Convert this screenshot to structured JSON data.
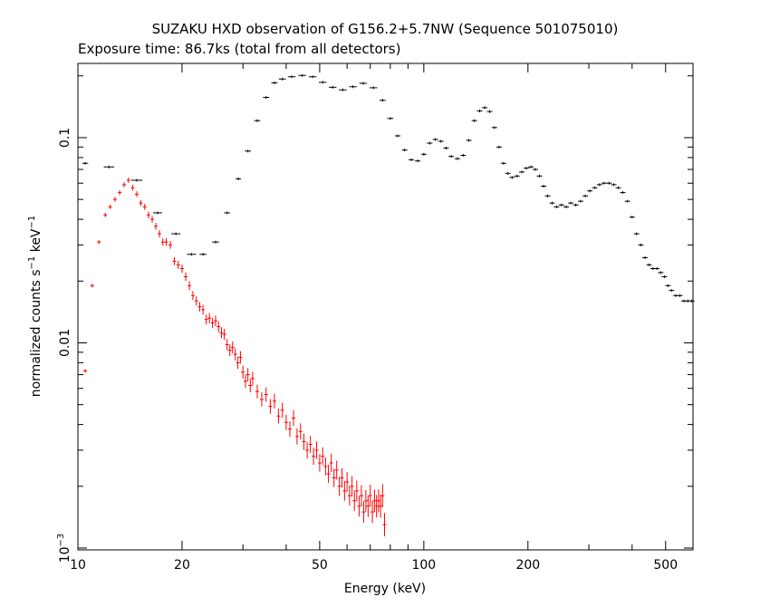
{
  "chart_data": {
    "type": "scatter",
    "title": "SUZAKU HXD observation of G156.2+5.7NW (Sequence 501075010)",
    "subtitle": "Exposure time: 86.7ks (total from all detectors)",
    "xlabel": "Energy (keV)",
    "ylabel": "normalized counts s^-1 keV^-1",
    "xscale": "log",
    "yscale": "log",
    "xlim": [
      10,
      600
    ],
    "ylim": [
      0.00098,
      0.23
    ],
    "grid": false,
    "x_ticks": [
      {
        "value": 10,
        "label": "10"
      },
      {
        "value": 20,
        "label": "20"
      },
      {
        "value": 50,
        "label": "50"
      },
      {
        "value": 100,
        "label": "100"
      },
      {
        "value": 200,
        "label": "200"
      },
      {
        "value": 500,
        "label": "500"
      }
    ],
    "y_ticks": [
      {
        "value": 0.001,
        "label": "10",
        "exp": "−3"
      },
      {
        "value": 0.01,
        "label": "0.01",
        "exp": ""
      },
      {
        "value": 0.1,
        "label": "0.1",
        "exp": ""
      }
    ],
    "series": [
      {
        "color": "#000000",
        "points": [
          [
            10.5,
            0.075,
            0.55
          ],
          [
            12.3,
            0.072,
            1.2
          ],
          [
            14.8,
            0.062,
            1.3
          ],
          [
            17.0,
            0.043,
            1.0
          ],
          [
            19.2,
            0.034,
            1.0
          ],
          [
            21.3,
            0.027,
            1.0
          ],
          [
            23.0,
            0.027,
            0.7
          ],
          [
            25.0,
            0.031,
            0.7
          ],
          [
            27.0,
            0.043,
            0.6
          ],
          [
            29.1,
            0.063,
            0.5
          ],
          [
            31.0,
            0.086,
            0.6
          ],
          [
            33.0,
            0.121,
            0.6
          ],
          [
            35.0,
            0.157,
            0.6
          ],
          [
            37.0,
            0.185,
            0.6
          ],
          [
            39.0,
            0.193,
            0.7
          ],
          [
            41.5,
            0.198,
            0.8
          ],
          [
            44.5,
            0.201,
            0.8
          ],
          [
            47.7,
            0.198,
            0.8
          ],
          [
            51.0,
            0.186,
            0.8
          ],
          [
            54.5,
            0.176,
            0.8
          ],
          [
            58.3,
            0.171,
            0.8
          ],
          [
            62.4,
            0.177,
            0.8
          ],
          [
            66.8,
            0.184,
            0.8
          ],
          [
            71.5,
            0.175,
            0.8
          ],
          [
            76.0,
            0.152,
            0.6
          ],
          [
            80.0,
            0.124,
            0.6
          ],
          [
            84.0,
            0.102,
            0.5
          ],
          [
            88.0,
            0.087,
            0.5
          ],
          [
            92.0,
            0.078,
            0.5
          ],
          [
            96.0,
            0.077,
            0.5
          ],
          [
            100.0,
            0.083,
            0.5
          ],
          [
            104.0,
            0.094,
            0.5
          ],
          [
            108.0,
            0.098,
            0.5
          ],
          [
            112.0,
            0.096,
            0.5
          ],
          [
            116.0,
            0.089,
            0.5
          ],
          [
            120.0,
            0.081,
            0.5
          ],
          [
            125.0,
            0.079,
            0.5
          ],
          [
            130.0,
            0.082,
            0.5
          ],
          [
            135.0,
            0.097,
            0.5
          ],
          [
            140.0,
            0.121,
            0.5
          ],
          [
            145.0,
            0.135,
            0.5
          ],
          [
            150.0,
            0.14,
            0.5
          ],
          [
            155.0,
            0.134,
            0.5
          ],
          [
            160.0,
            0.112,
            0.5
          ],
          [
            165.0,
            0.09,
            0.5
          ],
          [
            170.0,
            0.075,
            0.5
          ],
          [
            175.0,
            0.067,
            0.5
          ],
          [
            180.0,
            0.064,
            0.5
          ],
          [
            186.0,
            0.065,
            0.5
          ],
          [
            192.0,
            0.068,
            0.5
          ],
          [
            198.0,
            0.071,
            0.5
          ],
          [
            204.0,
            0.072,
            0.5
          ],
          [
            210.0,
            0.07,
            0.5
          ],
          [
            216.0,
            0.065,
            0.5
          ],
          [
            222.0,
            0.058,
            0.5
          ],
          [
            228.0,
            0.052,
            0.5
          ],
          [
            235.0,
            0.048,
            0.5
          ],
          [
            242.0,
            0.046,
            0.5
          ],
          [
            250.0,
            0.047,
            0.5
          ],
          [
            258.0,
            0.046,
            0.5
          ],
          [
            266.0,
            0.048,
            0.5
          ],
          [
            275.0,
            0.047,
            0.5
          ],
          [
            284.0,
            0.049,
            0.5
          ],
          [
            293.0,
            0.052,
            0.5
          ],
          [
            302.0,
            0.055,
            0.5
          ],
          [
            312.0,
            0.057,
            0.5
          ],
          [
            322.0,
            0.059,
            0.5
          ],
          [
            332.0,
            0.06,
            0.5
          ],
          [
            343.0,
            0.06,
            0.5
          ],
          [
            354.0,
            0.059,
            0.5
          ],
          [
            365.0,
            0.057,
            0.5
          ],
          [
            376.0,
            0.054,
            0.5
          ],
          [
            388.0,
            0.049,
            0.5
          ],
          [
            400.0,
            0.041,
            0.5
          ],
          [
            412.0,
            0.034,
            0.5
          ],
          [
            424.0,
            0.03,
            0.5
          ],
          [
            436.0,
            0.026,
            0.5
          ],
          [
            448.0,
            0.024,
            0.5
          ],
          [
            460.0,
            0.023,
            0.5
          ],
          [
            472.0,
            0.023,
            0.5
          ],
          [
            484.0,
            0.022,
            0.5
          ],
          [
            496.0,
            0.021,
            0.5
          ],
          [
            508.0,
            0.019,
            0.5
          ],
          [
            520.0,
            0.018,
            0.5
          ],
          [
            535.0,
            0.017,
            0.5
          ],
          [
            550.0,
            0.017,
            0.5
          ],
          [
            565.0,
            0.016,
            0.5
          ],
          [
            580.0,
            0.016,
            0.5
          ],
          [
            595.0,
            0.016,
            0.5
          ]
        ]
      },
      {
        "color": "#ff0000",
        "points": [
          [
            10.5,
            0.0073,
            0.2
          ],
          [
            11.0,
            0.019,
            0.2
          ],
          [
            11.5,
            0.031,
            0.2
          ],
          [
            12.0,
            0.042,
            0.2
          ],
          [
            12.4,
            0.046,
            0.2
          ],
          [
            12.8,
            0.05,
            0.2
          ],
          [
            13.2,
            0.054,
            0.2
          ],
          [
            13.6,
            0.059,
            0.2
          ],
          [
            14.0,
            0.062,
            0.2
          ],
          [
            14.4,
            0.057,
            0.2
          ],
          [
            14.8,
            0.053,
            0.2
          ],
          [
            15.2,
            0.048,
            0.2
          ],
          [
            15.6,
            0.046,
            0.2
          ],
          [
            16.0,
            0.042,
            0.2
          ],
          [
            16.4,
            0.04,
            0.2
          ],
          [
            16.8,
            0.037,
            0.2
          ],
          [
            17.2,
            0.034,
            0.2
          ],
          [
            17.6,
            0.031,
            0.2
          ],
          [
            18.0,
            0.031,
            0.2
          ],
          [
            18.5,
            0.03,
            0.2
          ],
          [
            19.0,
            0.025,
            0.2
          ],
          [
            19.5,
            0.024,
            0.2
          ],
          [
            20.0,
            0.023,
            0.2
          ],
          [
            20.5,
            0.021,
            0.2
          ],
          [
            21.0,
            0.019,
            0.2
          ],
          [
            21.5,
            0.017,
            0.2
          ],
          [
            22.0,
            0.016,
            0.2
          ],
          [
            22.5,
            0.015,
            0.2
          ],
          [
            23.0,
            0.0145,
            0.2
          ],
          [
            23.5,
            0.013,
            0.2
          ],
          [
            24.0,
            0.0132,
            0.2
          ],
          [
            24.5,
            0.0125,
            0.2
          ],
          [
            25.0,
            0.0128,
            0.2
          ],
          [
            25.5,
            0.012,
            0.2
          ],
          [
            26.0,
            0.0112,
            0.2
          ],
          [
            26.5,
            0.011,
            0.2
          ],
          [
            27.0,
            0.0098,
            0.2
          ],
          [
            27.5,
            0.0092,
            0.2
          ],
          [
            28.0,
            0.0095,
            0.2
          ],
          [
            28.5,
            0.0088,
            0.2
          ],
          [
            29.0,
            0.008,
            0.2
          ],
          [
            29.5,
            0.0085,
            0.2
          ],
          [
            30.0,
            0.0072,
            0.2
          ],
          [
            30.5,
            0.0065,
            0.2
          ],
          [
            31.0,
            0.007,
            0.2
          ],
          [
            31.5,
            0.0062,
            0.2
          ],
          [
            32.0,
            0.0067,
            0.2
          ],
          [
            33.0,
            0.0058,
            0.2
          ],
          [
            34.0,
            0.0053,
            0.2
          ],
          [
            35.0,
            0.0056,
            0.2
          ],
          [
            36.0,
            0.0049,
            0.2
          ],
          [
            37.0,
            0.0052,
            0.2
          ],
          [
            38.0,
            0.0044,
            0.2
          ],
          [
            39.0,
            0.0047,
            0.2
          ],
          [
            40.0,
            0.0041,
            0.2
          ],
          [
            41.0,
            0.0038,
            0.2
          ],
          [
            42.0,
            0.0043,
            0.2
          ],
          [
            43.0,
            0.0035,
            0.2
          ],
          [
            44.0,
            0.0037,
            0.2
          ],
          [
            45.0,
            0.0033,
            0.2
          ],
          [
            46.0,
            0.003,
            0.2
          ],
          [
            47.0,
            0.0032,
            0.2
          ],
          [
            48.0,
            0.0028,
            0.2
          ],
          [
            49.0,
            0.003,
            0.2
          ],
          [
            50.0,
            0.0026,
            0.2
          ],
          [
            51.0,
            0.0028,
            0.2
          ],
          [
            52.0,
            0.0025,
            0.2
          ],
          [
            53.0,
            0.0023,
            0.2
          ],
          [
            54.0,
            0.0026,
            0.2
          ],
          [
            55.0,
            0.0022,
            0.2
          ],
          [
            56.0,
            0.0024,
            0.2
          ],
          [
            57.0,
            0.002,
            0.2
          ],
          [
            58.0,
            0.0022,
            0.2
          ],
          [
            59.0,
            0.0019,
            0.2
          ],
          [
            60.0,
            0.0021,
            0.2
          ],
          [
            61.0,
            0.0018,
            0.2
          ],
          [
            62.0,
            0.002,
            0.2
          ],
          [
            63.0,
            0.0017,
            0.2
          ],
          [
            64.0,
            0.0019,
            0.2
          ],
          [
            65.0,
            0.0016,
            0.2
          ],
          [
            66.0,
            0.0018,
            0.2
          ],
          [
            67.0,
            0.0015,
            0.2
          ],
          [
            68.0,
            0.0017,
            0.2
          ],
          [
            69.0,
            0.0016,
            0.2
          ],
          [
            70.0,
            0.0018,
            0.2
          ],
          [
            71.0,
            0.0015,
            0.2
          ],
          [
            72.0,
            0.0017,
            0.2
          ],
          [
            73.0,
            0.0016,
            0.2
          ],
          [
            74.0,
            0.0017,
            0.2
          ],
          [
            75.0,
            0.0016,
            0.2
          ],
          [
            76.0,
            0.0018,
            0.2
          ],
          [
            77.0,
            0.0013,
            0.2
          ]
        ]
      }
    ]
  }
}
